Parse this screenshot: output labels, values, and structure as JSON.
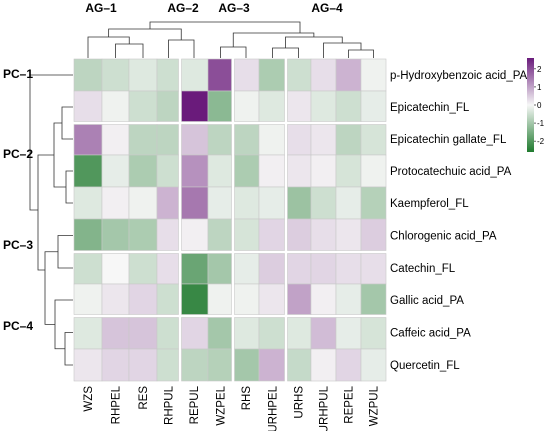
{
  "chart_data": {
    "type": "heatmap",
    "column_groups": [
      "AG–1",
      "AG–2",
      "AG–3",
      "AG–4"
    ],
    "row_groups": [
      "PC–1",
      "PC–2",
      "PC–3",
      "PC–4"
    ],
    "columns": [
      "WZS",
      "RHPEL",
      "RES",
      "RHPUL",
      "REPUL",
      "WZPEL",
      "RHS",
      "URHPEL",
      "URHS",
      "URHPUL",
      "REPEL",
      "WZPUL"
    ],
    "column_group_sizes": [
      3,
      2,
      2,
      5
    ],
    "rows": [
      "p-Hydroxybenzoic acid_PA",
      "Epicatechin_FL",
      "Epicatechin gallate_FL",
      "Protocatechuic acid_PA",
      "Kaempferol_FL",
      "Chlorogenic acid_PA",
      "Catechin_FL",
      "Gallic acid_PA",
      "Caffeic acid_PA",
      "Quercetin_FL"
    ],
    "row_group_sizes": [
      1,
      4,
      2,
      3
    ],
    "values": [
      [
        -0.7,
        -0.5,
        -0.3,
        -0.5,
        -0.3,
        2.0,
        0.3,
        -0.9,
        -0.5,
        0.3,
        0.8,
        -0.1
      ],
      [
        0.3,
        -0.1,
        -0.5,
        -0.7,
        2.6,
        -1.3,
        -0.1,
        -0.3,
        0.2,
        -0.3,
        -0.5,
        -0.2
      ],
      [
        1.4,
        0.1,
        -0.7,
        -0.7,
        0.6,
        -0.7,
        -0.7,
        -0.1,
        0.3,
        0.2,
        -0.7,
        -0.4
      ],
      [
        -2.0,
        -0.2,
        -0.9,
        -0.5,
        1.2,
        -0.3,
        -0.9,
        0.1,
        0.2,
        0.1,
        -0.4,
        -0.1
      ],
      [
        -0.3,
        0.1,
        -0.1,
        0.8,
        1.5,
        -0.2,
        -0.3,
        -0.2,
        -1.1,
        -0.5,
        -0.2,
        -0.8
      ],
      [
        -1.4,
        -1.0,
        -0.9,
        0.3,
        0.1,
        -0.7,
        -0.4,
        0.4,
        0.5,
        0.3,
        0.2,
        0.5
      ],
      [
        -0.5,
        0.0,
        -0.5,
        0.3,
        -1.7,
        -1.0,
        -0.2,
        0.5,
        0.4,
        0.4,
        0.3,
        0.3
      ],
      [
        -0.1,
        0.2,
        0.4,
        -0.5,
        -2.3,
        -0.1,
        -0.1,
        0.2,
        1.0,
        0.1,
        -0.2,
        -1.0
      ],
      [
        -0.3,
        0.6,
        0.6,
        -0.5,
        0.4,
        -1.0,
        -0.3,
        -0.5,
        -0.3,
        0.7,
        -0.2,
        -0.4
      ],
      [
        0.2,
        0.4,
        0.4,
        -0.5,
        -0.7,
        -0.8,
        -1.0,
        0.8,
        -0.6,
        0.1,
        0.4,
        -0.2
      ]
    ],
    "colorbar": {
      "ticks": [
        2,
        1,
        0,
        -1,
        -2
      ],
      "range": [
        -2.6,
        2.6
      ],
      "colors": {
        "low": "#1f7a2e",
        "mid": "#f7f7f7",
        "high": "#6a1b7b"
      }
    },
    "grid": false,
    "legend": "right"
  }
}
